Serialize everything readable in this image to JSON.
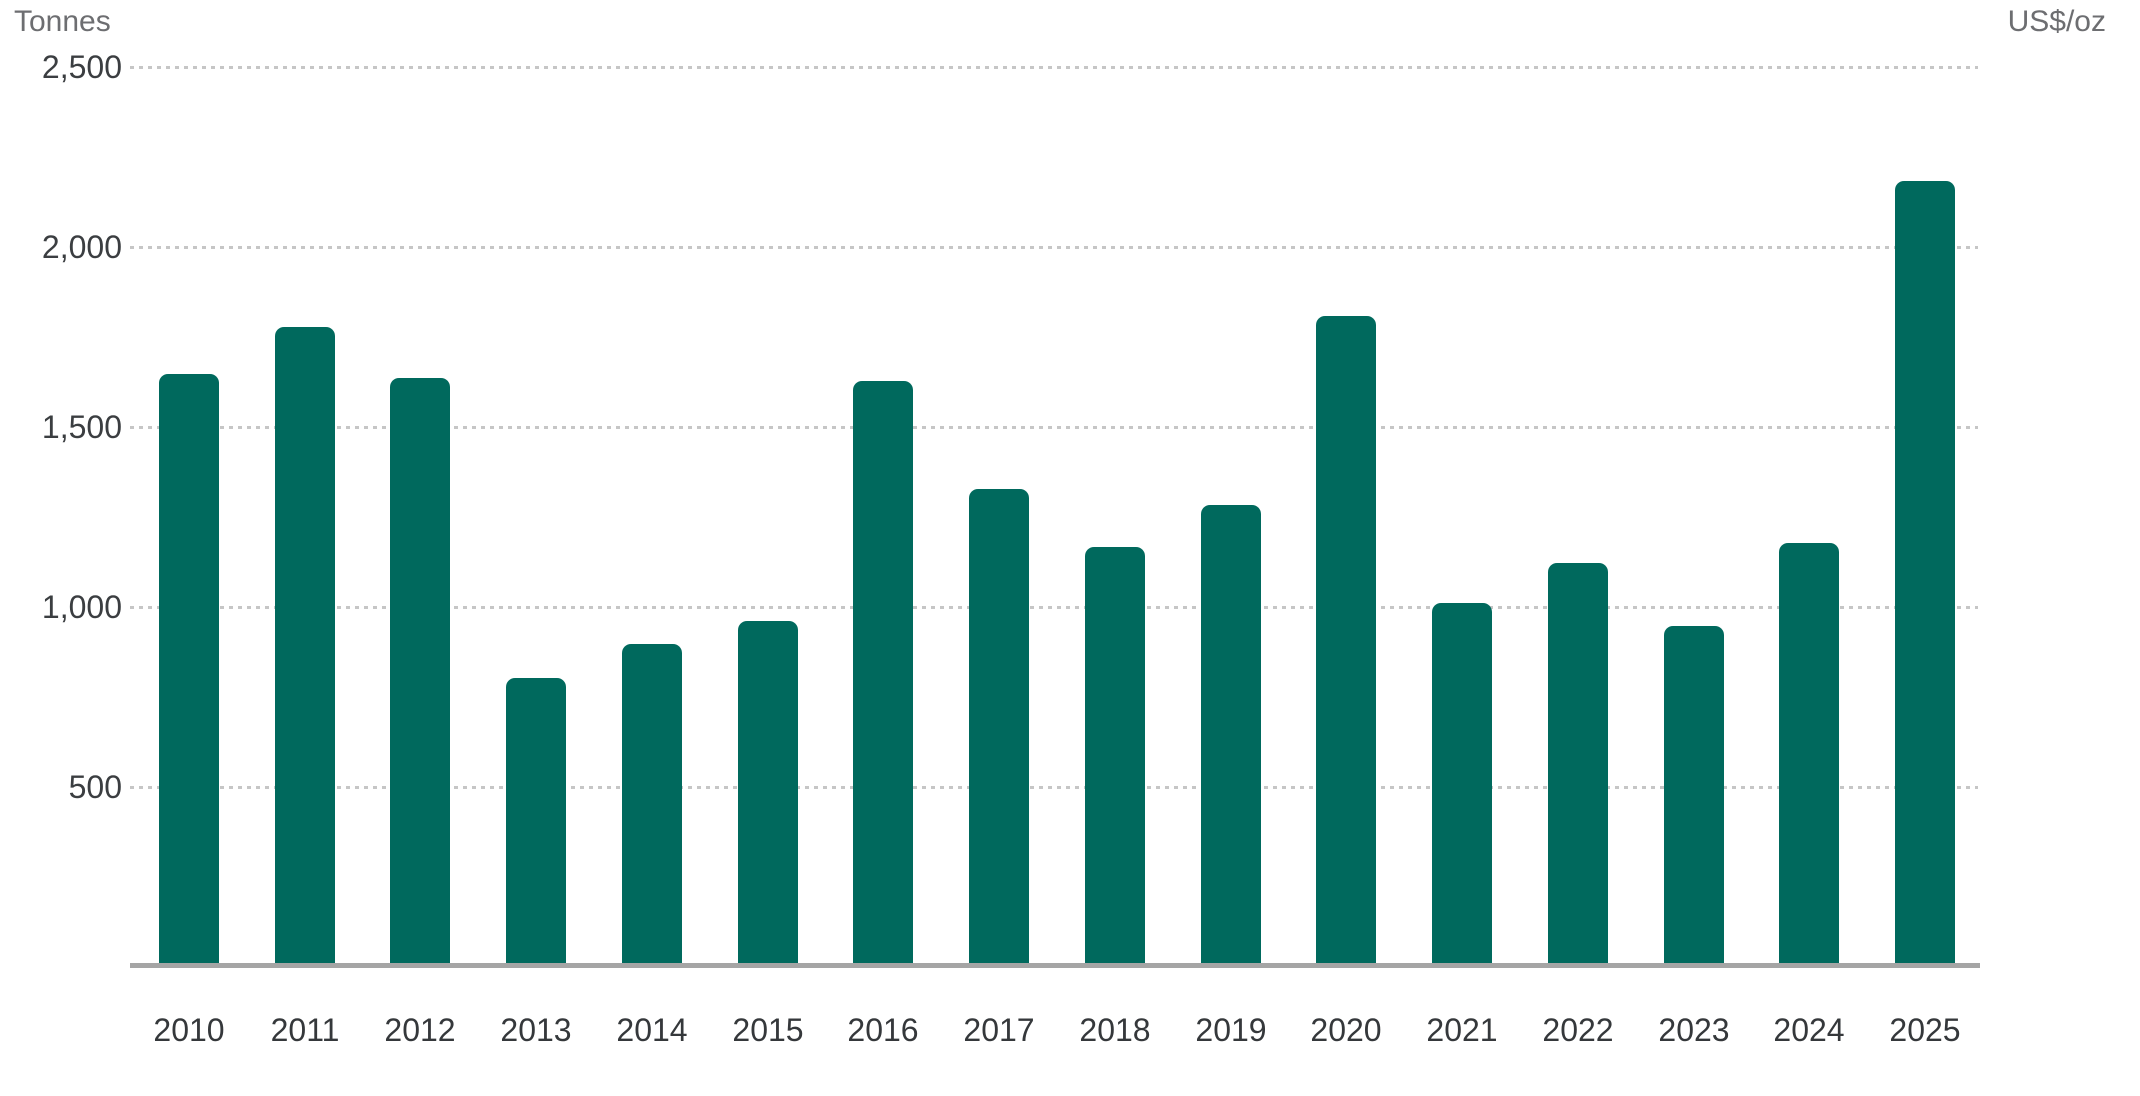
{
  "chart_data": {
    "type": "bar",
    "title": "",
    "left_axis_label": "Tonnes",
    "right_axis_label": "US$/oz",
    "categories": [
      "2010",
      "2011",
      "2012",
      "2013",
      "2014",
      "2015",
      "2016",
      "2017",
      "2018",
      "2019",
      "2020",
      "2021",
      "2022",
      "2023",
      "2024",
      "2025"
    ],
    "values": [
      1650,
      1780,
      1640,
      805,
      900,
      965,
      1630,
      1330,
      1170,
      1285,
      1810,
      1015,
      1125,
      950,
      1180,
      2185
    ],
    "y_ticks": [
      {
        "label": "2,500",
        "value": 2500
      },
      {
        "label": "2,000",
        "value": 2000
      },
      {
        "label": "1,500",
        "value": 1500
      },
      {
        "label": "1,000",
        "value": 1000
      },
      {
        "label": "500",
        "value": 500
      }
    ],
    "ylim": [
      0,
      2500
    ],
    "grid": "horizontal-dotted",
    "legend": "none",
    "right_axis_tick_labels": [],
    "colors": {
      "bar": "#00695D",
      "gridline": "#c6c6c6",
      "axis_line": "#a5a5a5",
      "axis_title": "#6d6e71",
      "y_tick_label": "#3b3e41",
      "x_tick_label": "#35383b",
      "background": "#ffffff"
    }
  }
}
